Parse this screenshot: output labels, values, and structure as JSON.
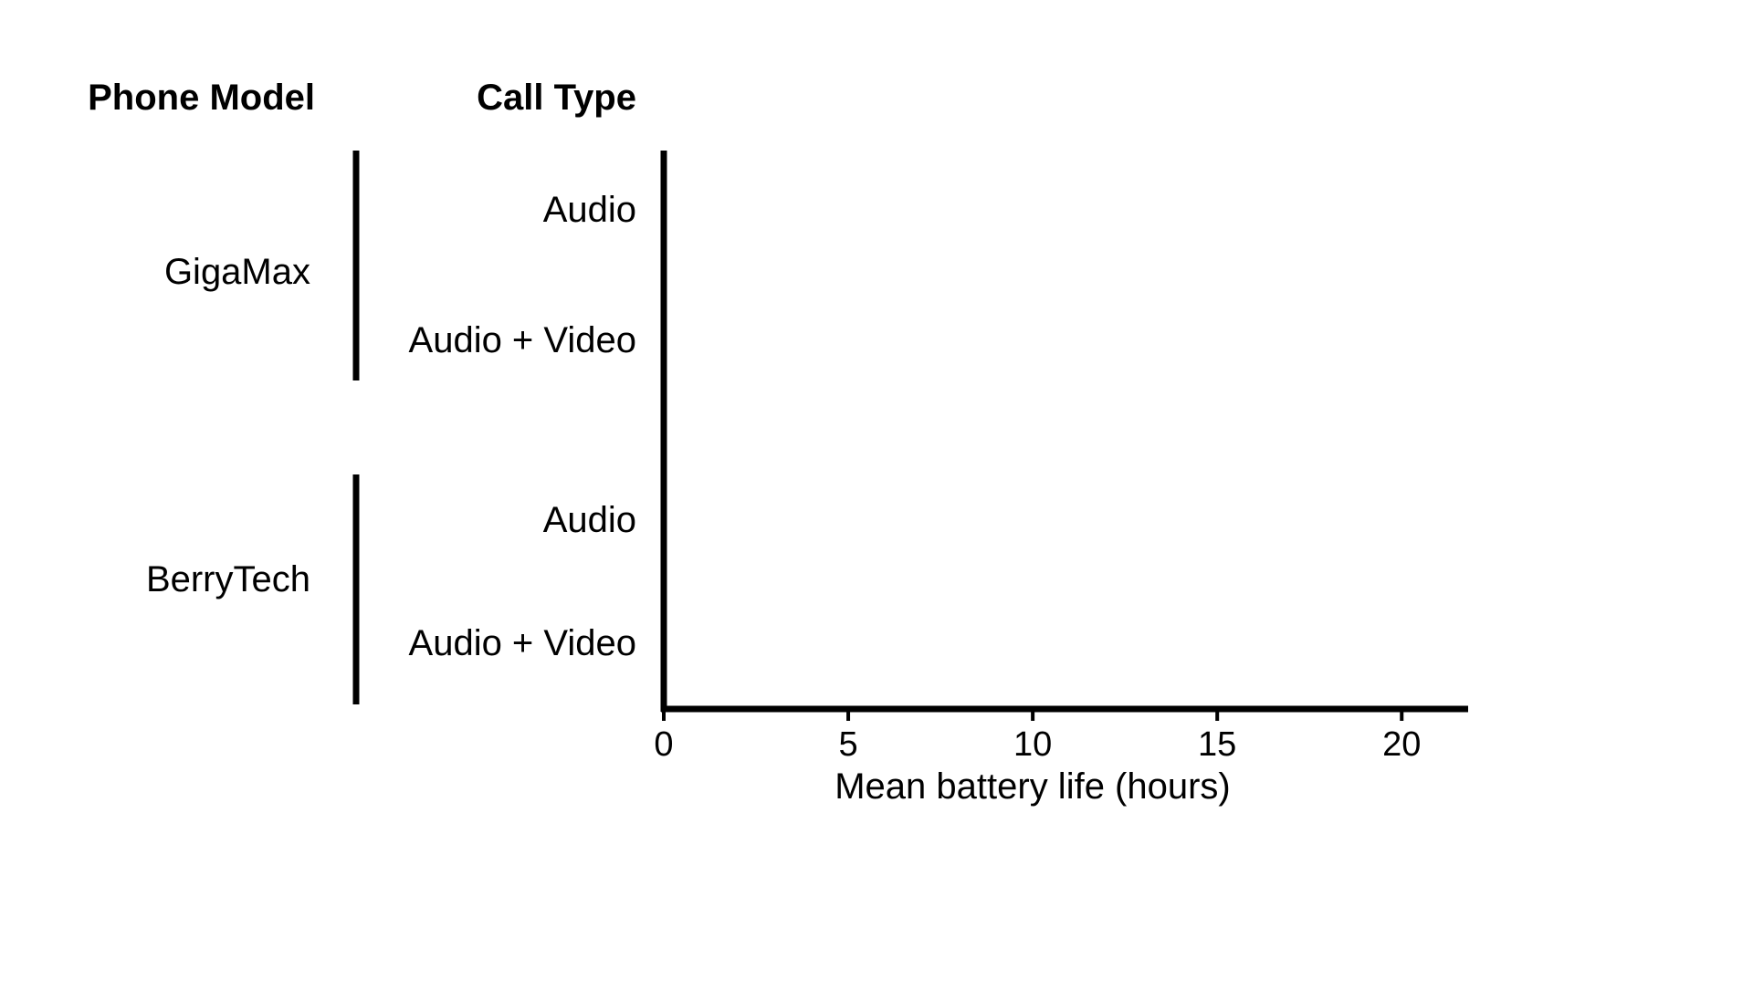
{
  "chart_data": {
    "type": "bar",
    "headers": {
      "group": "Phone Model",
      "category": "Call Type"
    },
    "groups": [
      {
        "name": "GigaMax",
        "categories": [
          "Audio",
          "Audio + Video"
        ]
      },
      {
        "name": "BerryTech",
        "categories": [
          "Audio",
          "Audio + Video"
        ]
      }
    ],
    "values": [
      null,
      null,
      null,
      null
    ],
    "xlabel": "Mean battery life (hours)",
    "xlim": [
      0,
      21.8
    ],
    "xticks": [
      0,
      5,
      10,
      15,
      20
    ],
    "tick_labels": [
      "0",
      "5",
      "10",
      "15",
      "20"
    ],
    "grid": false,
    "colors": {
      "ink": "#000000",
      "background": "#ffffff"
    }
  }
}
